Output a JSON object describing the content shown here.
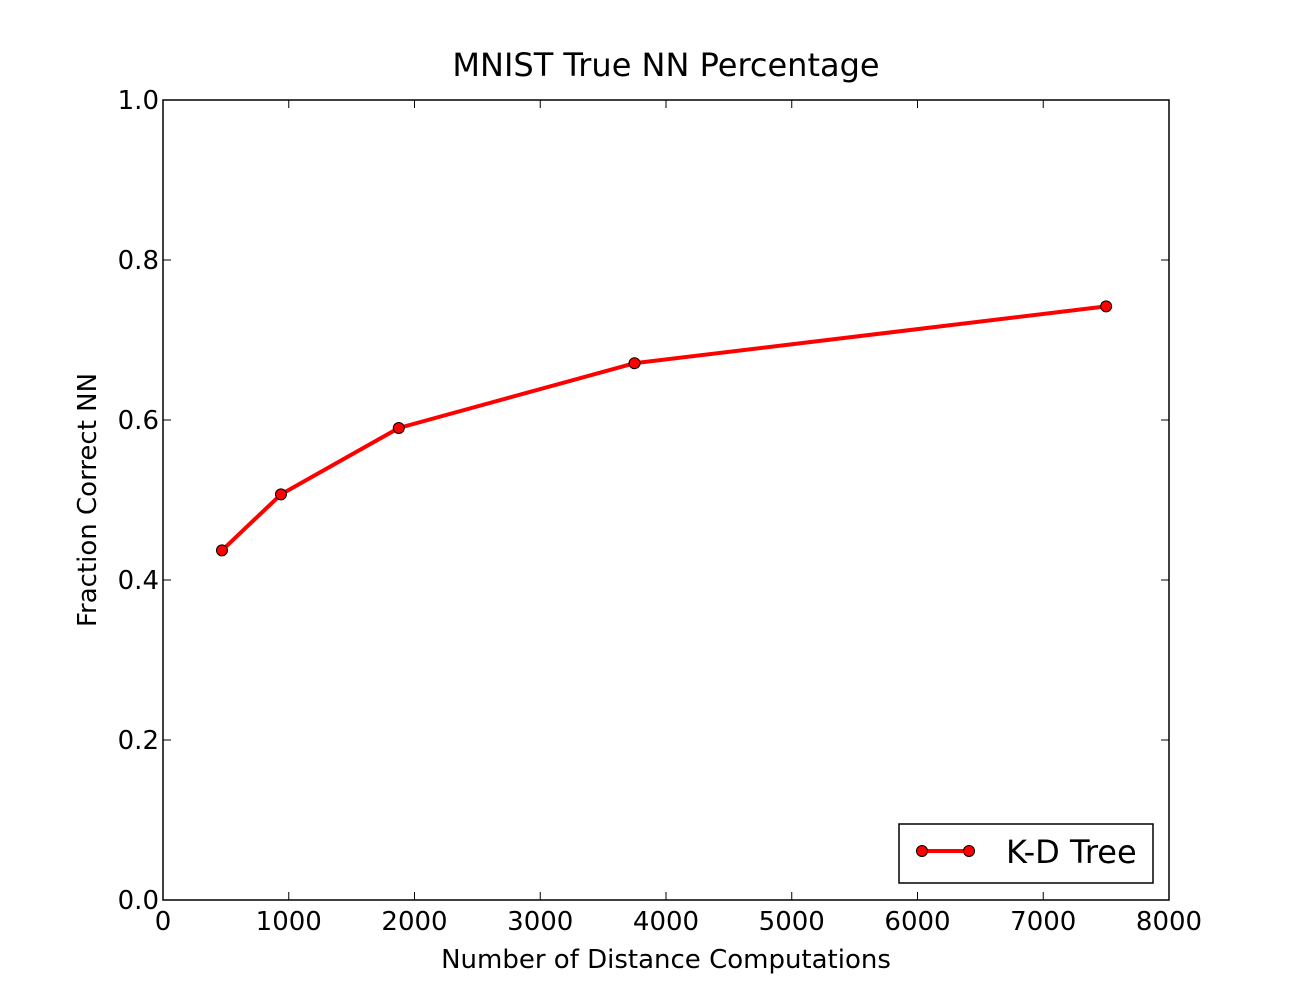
{
  "chart_data": {
    "type": "line",
    "title": "MNIST True NN Percentage",
    "xlabel": "Number of Distance Computations",
    "ylabel": "Fraction Correct NN",
    "xlim": [
      0,
      8000
    ],
    "ylim": [
      0.0,
      1.0
    ],
    "xticks": [
      0,
      1000,
      2000,
      3000,
      4000,
      5000,
      6000,
      7000,
      8000
    ],
    "xtick_labels": [
      "0",
      "1000",
      "2000",
      "3000",
      "4000",
      "5000",
      "6000",
      "7000",
      "8000"
    ],
    "yticks": [
      0.0,
      0.2,
      0.4,
      0.6,
      0.8,
      1.0
    ],
    "ytick_labels": [
      "0.0",
      "0.2",
      "0.4",
      "0.6",
      "0.8",
      "1.0"
    ],
    "grid": false,
    "legend_position": "lower-right",
    "series": [
      {
        "name": "K-D Tree",
        "color": "#ff0000",
        "marker": "circle",
        "x": [
          469,
          938,
          1875,
          3750,
          7500
        ],
        "y": [
          0.437,
          0.507,
          0.59,
          0.671,
          0.742
        ]
      }
    ]
  }
}
